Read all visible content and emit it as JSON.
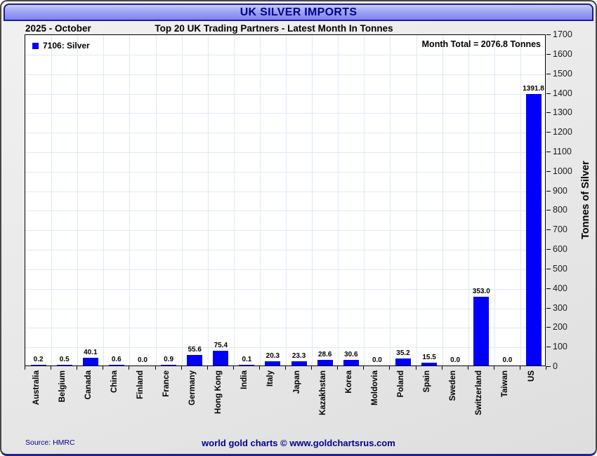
{
  "window": {
    "title": "UK SILVER IMPORTS"
  },
  "header": {
    "period": "2025 - October",
    "subtitle": "Top 20 UK Trading Partners - Latest Month In Tonnes"
  },
  "legend": {
    "label": "7106: Silver",
    "swatch_color": "#0000fa"
  },
  "annotation": {
    "month_total": "Month Total = 2076.8 Tonnes"
  },
  "chart_data": {
    "type": "bar",
    "title": "UK SILVER IMPORTS",
    "subtitle": "Top 20 UK Trading Partners - Latest Month In Tonnes",
    "categories": [
      "Australia",
      "Belgium",
      "Canada",
      "China",
      "Finland",
      "France",
      "Germany",
      "Hong Kong",
      "India",
      "Italy",
      "Japan",
      "Kazakhstan",
      "Korea",
      "Moldovia",
      "Poland",
      "Spain",
      "Sweden",
      "Switzerland",
      "Taiwan",
      "US"
    ],
    "values": [
      0.2,
      0.5,
      40.1,
      0.6,
      0.0,
      0.9,
      55.6,
      75.4,
      0.1,
      20.3,
      23.3,
      28.6,
      30.6,
      0.0,
      35.2,
      15.5,
      0.0,
      353.0,
      0.0,
      1391.8
    ],
    "value_labels": [
      "0.2",
      "0.5",
      "40.1",
      "0.6",
      "0.0",
      "0.9",
      "55.6",
      "75.4",
      "0.1",
      "20.3",
      "23.3",
      "28.6",
      "30.6",
      "0.0",
      "35.2",
      "15.5",
      "0.0",
      "353.0",
      "0.0",
      "1391.8"
    ],
    "series_name": "7106: Silver",
    "xlabel": "",
    "ylabel": "Tonnes of Silver",
    "ylim": [
      0,
      1700
    ],
    "ytick_step": 100,
    "bar_color": "#0000fa",
    "grid": true,
    "legend_position": "top-left",
    "yaxis_side": "right"
  },
  "footer": {
    "source": "Source: HMRC",
    "credit": "world gold charts © www.goldchartsrus.com"
  }
}
